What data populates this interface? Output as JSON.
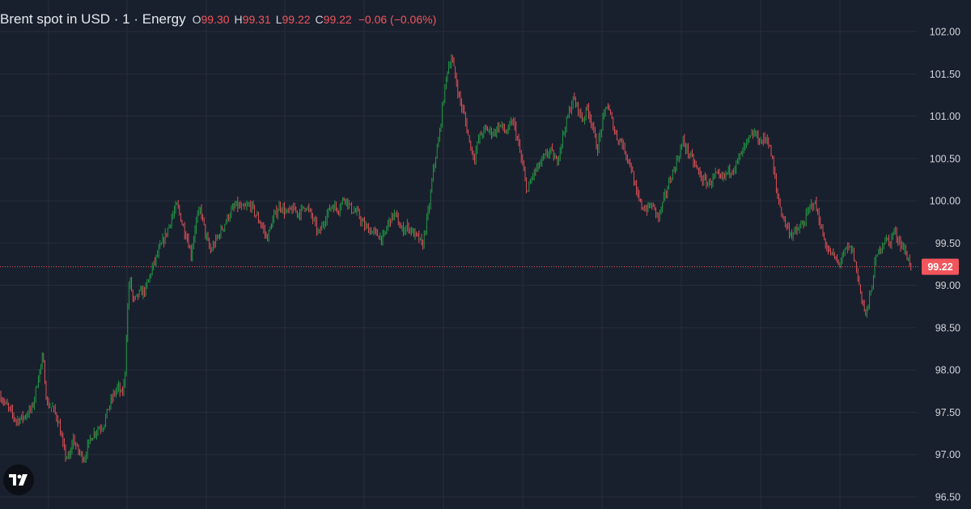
{
  "legend": {
    "symbol": "Brent spot in USD · 1 · Energy",
    "open_key": "O",
    "open": "99.30",
    "high_key": "H",
    "high": "99.31",
    "low_key": "L",
    "low": "99.22",
    "close_key": "C",
    "close": "99.22",
    "change": "−0.06 (−0.06%)"
  },
  "colors": {
    "background": "#19202d",
    "grid": "#262d3b",
    "up": "#22a546",
    "down": "#f2555c",
    "axis_text": "#d1d4dc",
    "last_price_line": "#f2555c"
  },
  "logo": {
    "icon": "tradingview-logo-icon"
  },
  "chart_data": {
    "type": "candlestick",
    "interval": "1",
    "grid": true,
    "ylim": [
      96.5,
      102.0
    ],
    "y_ticks": [
      "102.00",
      "101.50",
      "101.00",
      "100.50",
      "100.00",
      "99.50",
      "99.00",
      "98.50",
      "98.00",
      "97.50",
      "97.00",
      "96.50"
    ],
    "last_price_label": "99.22",
    "last_price": 99.22,
    "price_path": [
      [
        0,
        97.7
      ],
      [
        10,
        97.55
      ],
      [
        20,
        97.4
      ],
      [
        30,
        97.45
      ],
      [
        40,
        97.55
      ],
      [
        48,
        97.95
      ],
      [
        53,
        98.15
      ],
      [
        58,
        97.6
      ],
      [
        65,
        97.55
      ],
      [
        72,
        97.4
      ],
      [
        80,
        97.0
      ],
      [
        86,
        96.95
      ],
      [
        90,
        97.2
      ],
      [
        96,
        97.05
      ],
      [
        104,
        96.95
      ],
      [
        112,
        97.2
      ],
      [
        120,
        97.3
      ],
      [
        128,
        97.35
      ],
      [
        134,
        97.55
      ],
      [
        140,
        97.7
      ],
      [
        146,
        97.8
      ],
      [
        150,
        97.7
      ],
      [
        154,
        97.85
      ],
      [
        157,
        98.6
      ],
      [
        160,
        99.1
      ],
      [
        165,
        98.8
      ],
      [
        172,
        98.9
      ],
      [
        180,
        98.95
      ],
      [
        188,
        99.2
      ],
      [
        196,
        99.4
      ],
      [
        205,
        99.6
      ],
      [
        212,
        99.8
      ],
      [
        219,
        99.95
      ],
      [
        226,
        99.7
      ],
      [
        232,
        99.55
      ],
      [
        236,
        99.35
      ],
      [
        242,
        99.75
      ],
      [
        248,
        99.9
      ],
      [
        254,
        99.6
      ],
      [
        260,
        99.4
      ],
      [
        268,
        99.55
      ],
      [
        276,
        99.7
      ],
      [
        284,
        99.85
      ],
      [
        292,
        99.95
      ],
      [
        300,
        99.9
      ],
      [
        310,
        99.95
      ],
      [
        318,
        99.8
      ],
      [
        324,
        99.7
      ],
      [
        330,
        99.55
      ],
      [
        338,
        99.8
      ],
      [
        346,
        99.95
      ],
      [
        354,
        99.85
      ],
      [
        362,
        99.9
      ],
      [
        370,
        99.85
      ],
      [
        378,
        99.95
      ],
      [
        386,
        99.8
      ],
      [
        394,
        99.6
      ],
      [
        402,
        99.8
      ],
      [
        410,
        99.95
      ],
      [
        418,
        99.9
      ],
      [
        426,
        100.05
      ],
      [
        434,
        99.9
      ],
      [
        442,
        99.85
      ],
      [
        450,
        99.7
      ],
      [
        458,
        99.65
      ],
      [
        466,
        99.6
      ],
      [
        474,
        99.55
      ],
      [
        480,
        99.75
      ],
      [
        488,
        99.85
      ],
      [
        496,
        99.65
      ],
      [
        504,
        99.7
      ],
      [
        512,
        99.6
      ],
      [
        518,
        99.55
      ],
      [
        522,
        99.45
      ],
      [
        526,
        99.7
      ],
      [
        530,
        99.9
      ],
      [
        536,
        100.4
      ],
      [
        542,
        100.7
      ],
      [
        548,
        101.2
      ],
      [
        553,
        101.55
      ],
      [
        558,
        101.7
      ],
      [
        563,
        101.45
      ],
      [
        568,
        101.2
      ],
      [
        574,
        101.0
      ],
      [
        580,
        100.7
      ],
      [
        586,
        100.5
      ],
      [
        592,
        100.75
      ],
      [
        600,
        100.85
      ],
      [
        610,
        100.8
      ],
      [
        618,
        100.9
      ],
      [
        626,
        100.8
      ],
      [
        634,
        100.95
      ],
      [
        640,
        100.7
      ],
      [
        646,
        100.4
      ],
      [
        652,
        100.1
      ],
      [
        658,
        100.3
      ],
      [
        665,
        100.4
      ],
      [
        672,
        100.5
      ],
      [
        680,
        100.6
      ],
      [
        688,
        100.45
      ],
      [
        695,
        100.75
      ],
      [
        702,
        101.0
      ],
      [
        708,
        101.2
      ],
      [
        714,
        101.1
      ],
      [
        720,
        100.95
      ],
      [
        726,
        101.1
      ],
      [
        732,
        100.9
      ],
      [
        738,
        100.6
      ],
      [
        744,
        100.9
      ],
      [
        750,
        101.15
      ],
      [
        756,
        100.95
      ],
      [
        762,
        100.75
      ],
      [
        768,
        100.7
      ],
      [
        774,
        100.55
      ],
      [
        780,
        100.4
      ],
      [
        786,
        100.1
      ],
      [
        792,
        99.95
      ],
      [
        798,
        99.9
      ],
      [
        806,
        99.95
      ],
      [
        814,
        99.8
      ],
      [
        820,
        100.0
      ],
      [
        828,
        100.25
      ],
      [
        836,
        100.45
      ],
      [
        844,
        100.7
      ],
      [
        852,
        100.55
      ],
      [
        860,
        100.4
      ],
      [
        868,
        100.25
      ],
      [
        876,
        100.2
      ],
      [
        884,
        100.3
      ],
      [
        892,
        100.25
      ],
      [
        900,
        100.35
      ],
      [
        908,
        100.4
      ],
      [
        916,
        100.55
      ],
      [
        924,
        100.7
      ],
      [
        932,
        100.8
      ],
      [
        940,
        100.7
      ],
      [
        948,
        100.75
      ],
      [
        954,
        100.5
      ],
      [
        960,
        100.1
      ],
      [
        966,
        99.85
      ],
      [
        972,
        99.7
      ],
      [
        978,
        99.6
      ],
      [
        986,
        99.65
      ],
      [
        994,
        99.75
      ],
      [
        1000,
        99.9
      ],
      [
        1006,
        100.0
      ],
      [
        1012,
        99.8
      ],
      [
        1018,
        99.55
      ],
      [
        1024,
        99.4
      ],
      [
        1030,
        99.35
      ],
      [
        1036,
        99.25
      ],
      [
        1042,
        99.35
      ],
      [
        1048,
        99.45
      ],
      [
        1054,
        99.4
      ],
      [
        1060,
        99.1
      ],
      [
        1066,
        98.8
      ],
      [
        1070,
        98.65
      ],
      [
        1076,
        98.9
      ],
      [
        1082,
        99.3
      ],
      [
        1088,
        99.45
      ],
      [
        1094,
        99.55
      ],
      [
        1100,
        99.5
      ],
      [
        1104,
        99.65
      ],
      [
        1110,
        99.55
      ],
      [
        1116,
        99.45
      ],
      [
        1122,
        99.32
      ],
      [
        1126,
        99.22
      ]
    ]
  }
}
